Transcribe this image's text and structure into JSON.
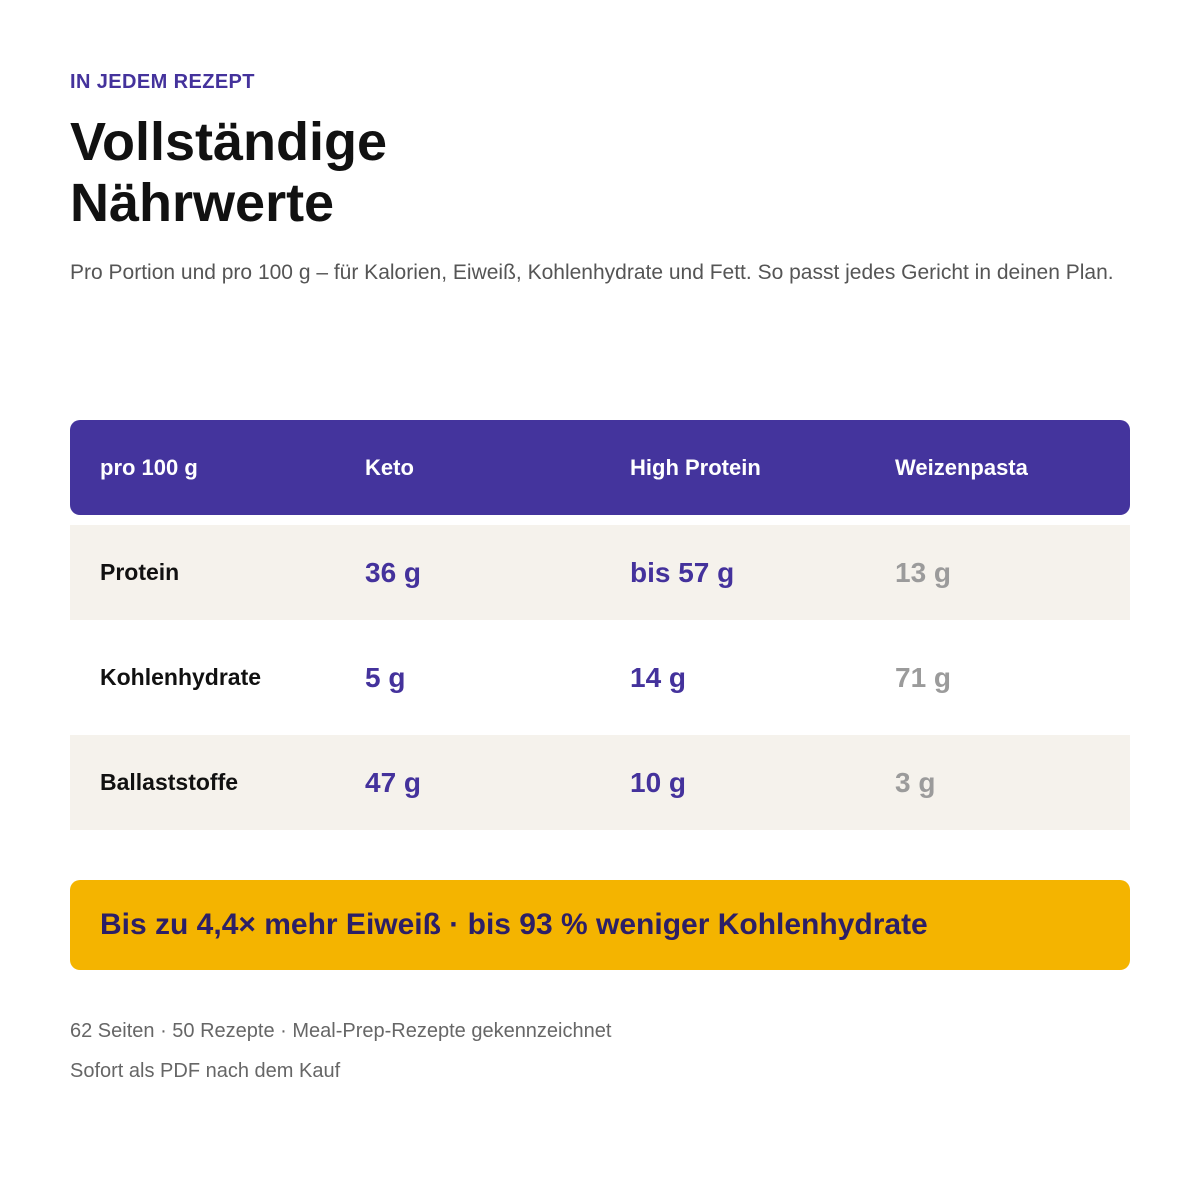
{
  "header": {
    "eyebrow": "IN JEDEM REZEPT",
    "title_line1": "Vollständige",
    "title_line2": "Nährwerte",
    "subtitle": "Pro Portion und pro 100 g – für Kalorien, Eiweiß, Kohlenhydrate und Fett. So passt jedes Gericht in deinen Plan."
  },
  "table": {
    "columns": [
      "pro 100 g",
      "Keto",
      "High Protein",
      "Weizenpasta"
    ],
    "rows": [
      {
        "label": "Protein",
        "keto": "36 g",
        "high_protein": "bis 57 g",
        "weizenpasta": "13 g"
      },
      {
        "label": "Kohlenhydrate",
        "keto": "5 g",
        "high_protein": "14 g",
        "weizenpasta": "71 g"
      },
      {
        "label": "Ballaststoffe",
        "keto": "47 g",
        "high_protein": "10 g",
        "weizenpasta": "3 g"
      }
    ]
  },
  "banner": {
    "text": "Bis zu 4,4× mehr Eiweiß · bis 93 % weniger Kohlenhydrate"
  },
  "footer": {
    "line1": "62 Seiten · 50 Rezepte · Meal-Prep-Rezepte gekennzeichnet",
    "line2": "Sofort als PDF nach dem Kauf"
  },
  "colors": {
    "accent": "#44349d",
    "banner": "#f4b400",
    "row_shade": "#f5f2ec",
    "muted": "#9b9b9b"
  }
}
